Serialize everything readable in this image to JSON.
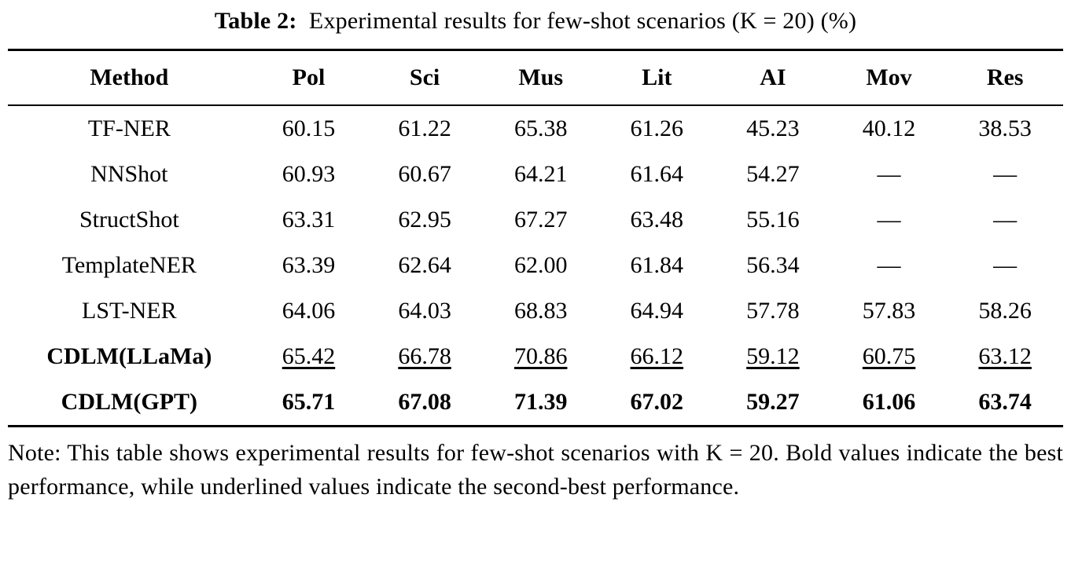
{
  "caption": {
    "label": "Table 2:",
    "text": "Experimental results for few-shot scenarios (K = 20) (%)"
  },
  "table": {
    "columns": [
      "Method",
      "Pol",
      "Sci",
      "Mus",
      "Lit",
      "AI",
      "Mov",
      "Res"
    ],
    "rows": [
      {
        "method": "TF-NER",
        "style": "normal",
        "values": [
          "60.15",
          "61.22",
          "65.38",
          "61.26",
          "45.23",
          "40.12",
          "38.53"
        ]
      },
      {
        "method": "NNShot",
        "style": "normal",
        "values": [
          "60.93",
          "60.67",
          "64.21",
          "61.64",
          "54.27",
          "—",
          "—"
        ]
      },
      {
        "method": "StructShot",
        "style": "normal",
        "values": [
          "63.31",
          "62.95",
          "67.27",
          "63.48",
          "55.16",
          "—",
          "—"
        ]
      },
      {
        "method": "TemplateNER",
        "style": "normal",
        "values": [
          "63.39",
          "62.64",
          "62.00",
          "61.84",
          "56.34",
          "—",
          "—"
        ]
      },
      {
        "method": "LST-NER",
        "style": "normal",
        "values": [
          "64.06",
          "64.03",
          "68.83",
          "64.94",
          "57.78",
          "57.83",
          "58.26"
        ]
      },
      {
        "method": "CDLM(LLaMa)",
        "style": "underline",
        "values": [
          "65.42",
          "66.78",
          "70.86",
          "66.12",
          "59.12",
          "60.75",
          "63.12"
        ]
      },
      {
        "method": "CDLM(GPT)",
        "style": "bold",
        "values": [
          "65.71",
          "67.08",
          "71.39",
          "67.02",
          "59.27",
          "61.06",
          "63.74"
        ]
      }
    ]
  },
  "note": "Note: This table shows experimental results for few-shot scenarios with K = 20. Bold values indicate the best performance, while underlined values indicate the second-best performance."
}
